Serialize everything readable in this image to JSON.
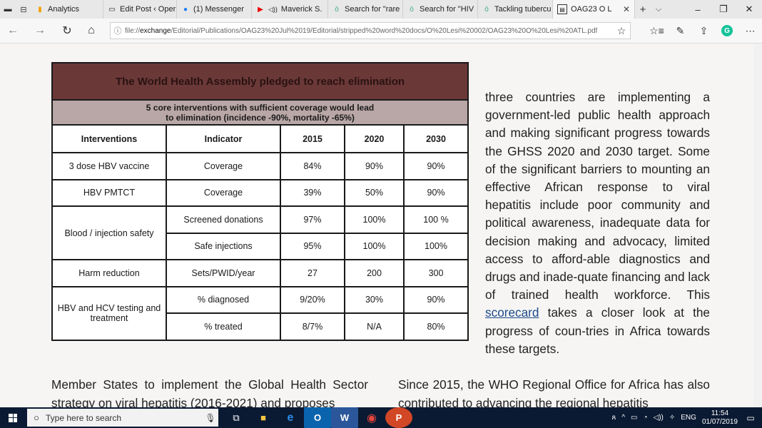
{
  "browser": {
    "tabs": [
      {
        "label": "Analytics",
        "icon": "analytics-icon",
        "active": false
      },
      {
        "label": "Edit Post ‹ Oper",
        "icon": "page-icon",
        "active": false
      },
      {
        "label": "(1) Messenger",
        "icon": "messenger-icon",
        "active": false
      },
      {
        "label": "Maverick S.",
        "icon": "youtube-icon",
        "active": false
      },
      {
        "label": "Search for \"rare",
        "icon": "search-tab-icon",
        "active": false
      },
      {
        "label": "Search for \"HIV",
        "icon": "search-tab-icon",
        "active": false
      },
      {
        "label": "Tackling tubercu",
        "icon": "search-tab-icon",
        "active": false
      },
      {
        "label": "OAG23 O L",
        "icon": "pdf-icon",
        "active": true
      }
    ],
    "address": {
      "prefix": "file://",
      "host": "exchange",
      "path": "/Editorial/Publications/OAG23%20Jul%2019/Editorial/stripped%20word%20docs/O%20Lesi%20002/OAG23%20O%20Lesi%20ATL.pdf"
    }
  },
  "table": {
    "title": "The World Health Assembly pledged to reach elimination",
    "subtitle_line1": "5 core interventions with sufficient coverage would lead",
    "subtitle_line2": "to elimination (incidence -90%, mortality -65%)",
    "headers": [
      "Interventions",
      "Indicator",
      "2015",
      "2020",
      "2030"
    ],
    "rows": [
      {
        "intervention": "3 dose HBV vaccine",
        "indicator": "Coverage",
        "y2015": "84%",
        "y2020": "90%",
        "y2030": "90%"
      },
      {
        "intervention": "HBV PMTCT",
        "indicator": "Coverage",
        "y2015": "39%",
        "y2020": "50%",
        "y2030": "90%"
      },
      {
        "intervention": "Blood / injection safety",
        "indicator": "Screened donations",
        "y2015": "97%",
        "y2020": "100%",
        "y2030": "100 %"
      },
      {
        "intervention": "",
        "indicator": "Safe injections",
        "y2015": "95%",
        "y2020": "100%",
        "y2030": "100%"
      },
      {
        "intervention": "Harm reduction",
        "indicator": "Sets/PWID/year",
        "y2015": "27",
        "y2020": "200",
        "y2030": "300"
      },
      {
        "intervention": "HBV and HCV testing and treatment",
        "indicator": "% diagnosed",
        "y2015": "9/20%",
        "y2020": "30%",
        "y2030": "90%"
      },
      {
        "intervention": "",
        "indicator": "% treated",
        "y2015": "8/7%",
        "y2020": "N/A",
        "y2030": "80%"
      }
    ]
  },
  "text": {
    "right_para_before_link": "three countries are implementing a government-led public health approach and making significant progress towards the GHSS 2020 and 2030 target. Some of the significant barriers to mounting an effective African response to viral hepatitis include poor community and political awareness, inadequate data for decision making and advocacy, limited access to afford-able diagnostics and drugs and inade-quate financing and lack of trained health workforce. This ",
    "right_para_link": "scorecard",
    "right_para_after_link": " takes a closer look at the progress of coun-tries in Africa towards these targets.",
    "bottom_left": "Member States to implement the Global Health Sector strategy on viral hepatitis (2016-2021) and proposes",
    "bottom_right": "Since 2015, the WHO Regional Office for Africa has also contributed to advancing the regional hepatitis"
  },
  "taskbar": {
    "search_placeholder": "Type here to search",
    "language": "ENG",
    "time": "11:54",
    "date": "01/07/2019"
  }
}
